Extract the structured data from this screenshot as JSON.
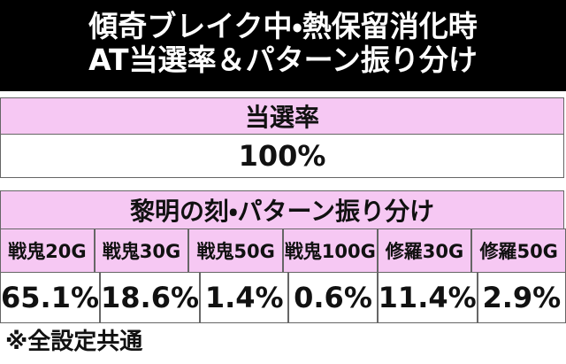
{
  "header": {
    "title_lines": [
      "傾奇ブレイク中・熱保留消化時",
      "AT当選率＆パターン振り分け"
    ]
  },
  "table1": {
    "header": "当選率",
    "value": "100%"
  },
  "table2": {
    "header": "黎明の刻・パターン振り分け",
    "columns": [
      "戦鬼20G",
      "戦鬼30G",
      "戦鬼50G",
      "戦鬼100G",
      "修羅30G",
      "修羅50G"
    ],
    "values": [
      "65.1%",
      "18.6%",
      "1.4%",
      "0.6%",
      "11.4%",
      "2.9%"
    ]
  },
  "footnote": "※全設定共通"
}
